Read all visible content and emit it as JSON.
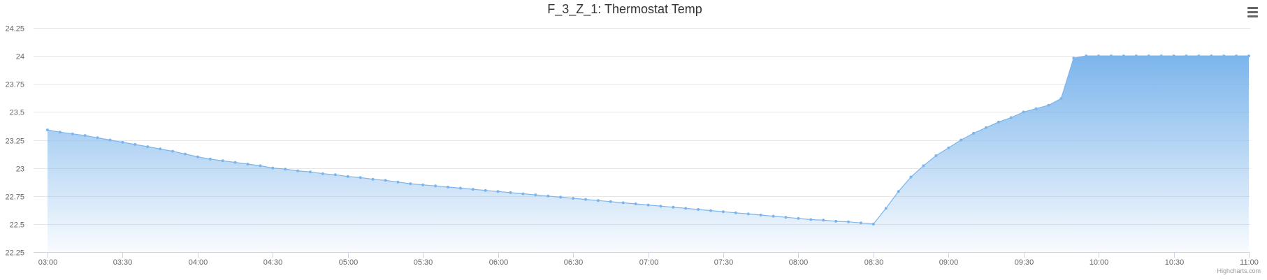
{
  "chart_data": {
    "type": "area",
    "title": "F_3_Z_1: Thermostat Temp",
    "xlabel": "",
    "ylabel": "",
    "ylim": [
      22.25,
      24.25
    ],
    "y_ticks": [
      "22.25",
      "22.5",
      "22.75",
      "23",
      "23.25",
      "23.5",
      "23.75",
      "24",
      "24.25"
    ],
    "y_tick_values": [
      22.25,
      22.5,
      22.75,
      23,
      23.25,
      23.5,
      23.75,
      24,
      24.25
    ],
    "x_ticks": [
      "03:00",
      "03:30",
      "04:00",
      "04:30",
      "05:00",
      "05:30",
      "06:00",
      "06:30",
      "07:00",
      "07:30",
      "08:00",
      "08:30",
      "09:00",
      "09:30",
      "10:00",
      "10:30",
      "11:00"
    ],
    "x_tick_minutes": [
      180,
      210,
      240,
      270,
      300,
      330,
      360,
      390,
      420,
      450,
      480,
      510,
      540,
      570,
      600,
      630,
      660
    ],
    "grid": true,
    "legend": "none",
    "series": [
      {
        "color": "#7cb5ec",
        "x": [
          "03:00",
          "03:05",
          "03:10",
          "03:15",
          "03:20",
          "03:25",
          "03:30",
          "03:35",
          "03:40",
          "03:45",
          "03:50",
          "03:55",
          "04:00",
          "04:05",
          "04:10",
          "04:15",
          "04:20",
          "04:25",
          "04:30",
          "04:35",
          "04:40",
          "04:45",
          "04:50",
          "04:55",
          "05:00",
          "05:05",
          "05:10",
          "05:15",
          "05:20",
          "05:25",
          "05:30",
          "05:35",
          "05:40",
          "05:45",
          "05:50",
          "05:55",
          "06:00",
          "06:05",
          "06:10",
          "06:15",
          "06:20",
          "06:25",
          "06:30",
          "06:35",
          "06:40",
          "06:45",
          "06:50",
          "06:55",
          "07:00",
          "07:05",
          "07:10",
          "07:15",
          "07:20",
          "07:25",
          "07:30",
          "07:35",
          "07:40",
          "07:45",
          "07:50",
          "07:55",
          "08:00",
          "08:05",
          "08:10",
          "08:15",
          "08:20",
          "08:25",
          "08:30",
          "08:35",
          "08:40",
          "08:45",
          "08:50",
          "08:55",
          "09:00",
          "09:05",
          "09:10",
          "09:15",
          "09:20",
          "09:25",
          "09:30",
          "09:35",
          "09:40",
          "09:45",
          "09:50",
          "09:55",
          "10:00",
          "10:05",
          "10:10",
          "10:15",
          "10:20",
          "10:25",
          "10:30",
          "10:35",
          "10:40",
          "10:45",
          "10:50",
          "10:55",
          "11:00"
        ],
        "values": [
          23.34,
          23.32,
          23.305,
          23.29,
          23.27,
          23.25,
          23.23,
          23.21,
          23.19,
          23.17,
          23.15,
          23.125,
          23.1,
          23.08,
          23.065,
          23.05,
          23.035,
          23.02,
          23.0,
          22.99,
          22.975,
          22.965,
          22.95,
          22.94,
          22.925,
          22.915,
          22.9,
          22.89,
          22.875,
          22.86,
          22.85,
          22.84,
          22.83,
          22.82,
          22.81,
          22.8,
          22.79,
          22.78,
          22.77,
          22.76,
          22.75,
          22.74,
          22.73,
          22.72,
          22.71,
          22.7,
          22.69,
          22.68,
          22.67,
          22.66,
          22.65,
          22.64,
          22.63,
          22.62,
          22.61,
          22.6,
          22.59,
          22.58,
          22.57,
          22.56,
          22.55,
          22.54,
          22.535,
          22.525,
          22.52,
          22.51,
          22.5,
          22.64,
          22.79,
          22.92,
          23.02,
          23.11,
          23.18,
          23.25,
          23.31,
          23.36,
          23.41,
          23.45,
          23.5,
          23.53,
          23.56,
          23.62,
          23.98,
          24.0,
          24.0,
          24.0,
          24.0,
          24.0,
          24.0,
          24.0,
          24.0,
          24.0,
          24.0,
          24.0,
          24.0,
          24.0,
          24.0
        ]
      }
    ]
  },
  "credits": "Highcharts.com",
  "menu_icon": "hamburger-menu-icon"
}
